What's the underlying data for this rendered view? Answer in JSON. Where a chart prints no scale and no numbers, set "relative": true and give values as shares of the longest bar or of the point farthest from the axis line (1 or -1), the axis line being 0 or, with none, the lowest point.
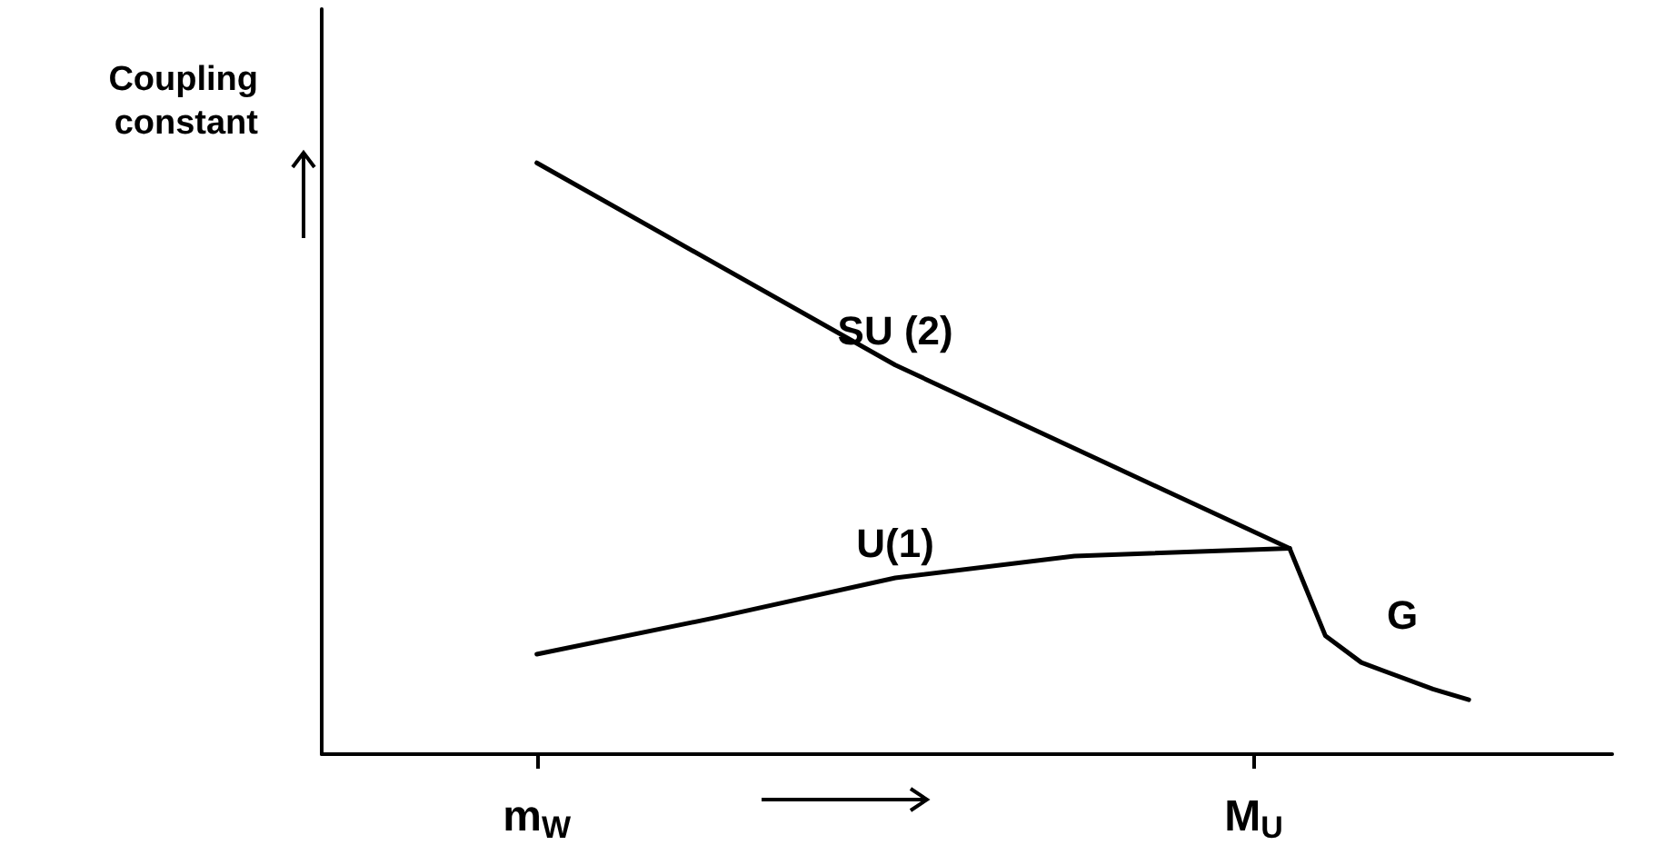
{
  "chart_data": {
    "type": "line",
    "ylabel": "Coupling\nconstant",
    "relative": true,
    "categories": [
      null,
      null,
      null,
      null,
      null,
      null,
      "m$_{W}$",
      null,
      null,
      null,
      null,
      null,
      null,
      null,
      null,
      null,
      null,
      null,
      null,
      null,
      null,
      null,
      null,
      null,
      null,
      null,
      "M$_{U}$",
      null,
      null,
      null,
      null,
      null,
      null,
      null,
      null,
      null,
      null
    ],
    "tick_labels": "x",
    "grid": false,
    "legend": false,
    "marker": "none",
    "line_style": "solid",
    "series": [
      {
        "name": "SU (2)",
        "color": "#000000",
        "values": [
          null,
          null,
          null,
          null,
          null,
          null,
          1,
          null,
          null,
          null,
          null,
          null,
          null,
          null,
          null,
          null,
          0.658,
          null,
          null,
          null,
          null,
          null,
          null,
          null,
          null,
          null,
          null,
          0.348,
          null,
          null,
          null,
          null,
          null,
          null,
          null,
          null,
          null
        ]
      },
      {
        "name": "U(1)",
        "color": "#000000",
        "values": [
          null,
          null,
          null,
          null,
          null,
          null,
          0.169,
          null,
          null,
          null,
          null,
          0.231,
          null,
          null,
          null,
          null,
          0.298,
          null,
          null,
          null,
          null,
          0.335,
          null,
          null,
          null,
          null,
          null,
          0.348,
          null,
          null,
          null,
          null,
          null,
          null,
          null,
          null,
          null
        ]
      },
      {
        "name": "G",
        "color": "#000000",
        "values": [
          null,
          null,
          null,
          null,
          null,
          null,
          null,
          null,
          null,
          null,
          null,
          null,
          null,
          null,
          null,
          null,
          null,
          null,
          null,
          null,
          null,
          null,
          null,
          null,
          null,
          null,
          null,
          0.348,
          0.2,
          0.155,
          null,
          0.11,
          0.092,
          null,
          null,
          null,
          null
        ]
      }
    ]
  }
}
